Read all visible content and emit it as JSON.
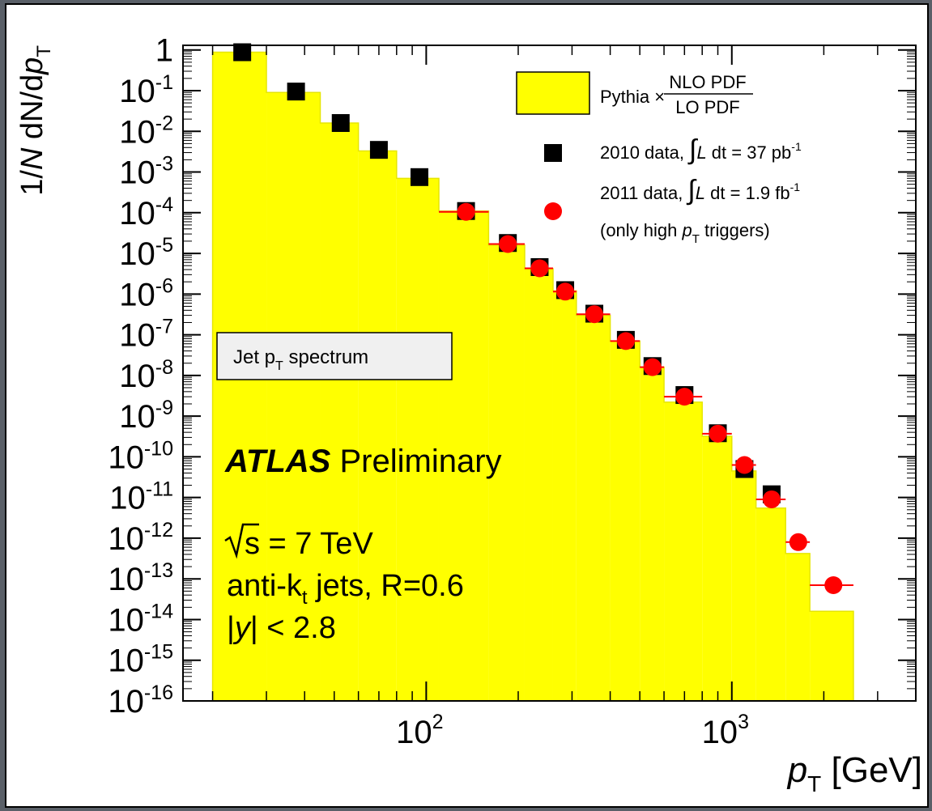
{
  "chart_data": {
    "type": "histogram-scatter",
    "xscale": "log",
    "yscale": "log",
    "xlim": [
      16,
      4000
    ],
    "ylim": [
      1e-16,
      1.3
    ],
    "y_ticks": [
      {
        "base": "1",
        "exp": ""
      },
      {
        "base": "10",
        "exp": "-1"
      },
      {
        "base": "10",
        "exp": "-2"
      },
      {
        "base": "10",
        "exp": "-3"
      },
      {
        "base": "10",
        "exp": "-4"
      },
      {
        "base": "10",
        "exp": "-5"
      },
      {
        "base": "10",
        "exp": "-6"
      },
      {
        "base": "10",
        "exp": "-7"
      },
      {
        "base": "10",
        "exp": "-8"
      },
      {
        "base": "10",
        "exp": "-9"
      },
      {
        "base": "10",
        "exp": "-10"
      },
      {
        "base": "10",
        "exp": "-11"
      },
      {
        "base": "10",
        "exp": "-12"
      },
      {
        "base": "10",
        "exp": "-13"
      },
      {
        "base": "10",
        "exp": "-14"
      },
      {
        "base": "10",
        "exp": "-15"
      },
      {
        "base": "10",
        "exp": "-16"
      }
    ],
    "x_ticks": [
      {
        "value": 100,
        "base": "10",
        "exp": "2"
      },
      {
        "value": 1000,
        "base": "10",
        "exp": "3"
      }
    ],
    "xlabel": {
      "main": "p",
      "sub": "T",
      "unit": " [GeV]"
    },
    "ylabel": {
      "pre": "1/",
      "n": "N",
      "mid": " dN/d",
      "p": "p",
      "sub": "T"
    },
    "histogram": {
      "name": "Pythia × NLO PDF / LO PDF",
      "color": "#ffff00",
      "edges": [
        20,
        30,
        45,
        60,
        80,
        110,
        160,
        210,
        260,
        310,
        400,
        500,
        600,
        800,
        1000,
        1200,
        1500,
        1800,
        2500
      ],
      "values": [
        0.88,
        0.09,
        0.016,
        0.0033,
        0.0007,
        0.00011,
        1.6e-05,
        4.2e-06,
        1.2e-06,
        3e-07,
        7e-08,
        1.6e-08,
        2.2e-09,
        3.2e-10,
        4.5e-11,
        5.5e-12,
        4.2e-13,
        1.6e-14
      ]
    },
    "series": [
      {
        "name": "2010 data, ∫L dt = 37 pb-1",
        "color": "#000000",
        "marker": "square",
        "x": [
          25,
          37.5,
          52.5,
          70,
          95,
          135,
          185,
          235,
          285,
          355,
          450,
          550,
          700,
          900,
          1100,
          1350
        ],
        "y": [
          0.88,
          0.095,
          0.016,
          0.0035,
          0.00075,
          0.00011,
          1.8e-05,
          4.6e-06,
          1.25e-06,
          3.3e-07,
          7.5e-08,
          1.7e-08,
          3.3e-09,
          3.8e-10,
          5e-11,
          1.2e-11
        ]
      },
      {
        "name": "2011 data, ∫L dt = 1.9 fb-1 (only high pT triggers)",
        "color": "#ff0000",
        "marker": "circle",
        "x": [
          135,
          185,
          235,
          285,
          355,
          450,
          550,
          700,
          900,
          1100,
          1350,
          1650,
          2150
        ],
        "y": [
          0.000105,
          1.7e-05,
          4.3e-06,
          1.15e-06,
          3.2e-07,
          7e-08,
          1.6e-08,
          3e-09,
          3.7e-10,
          6.3e-11,
          9e-12,
          8e-13,
          7e-14
        ],
        "xerr": [
          [
            110,
            160
          ],
          [
            160,
            210
          ],
          [
            210,
            260
          ],
          [
            260,
            310
          ],
          [
            310,
            400
          ],
          [
            400,
            500
          ],
          [
            500,
            600
          ],
          [
            600,
            800
          ],
          [
            800,
            1000
          ],
          [
            1000,
            1200
          ],
          [
            1200,
            1500
          ],
          [
            1500,
            1800
          ],
          [
            1800,
            2500
          ]
        ]
      }
    ],
    "legend": {
      "hist_prefix": "Pythia",
      "hist_times": "×",
      "hist_num": "NLO PDF",
      "hist_den": "LO PDF",
      "data2010_text": "2010 data,",
      "data2010_int": "L dt = 37 pb",
      "data2010_exp": "-1",
      "data2011_text": "2011 data,",
      "data2011_int": "L dt = 1.9 fb",
      "data2011_exp": "-1",
      "trigger_pre": "(only high ",
      "trigger_p": "p",
      "trigger_sub": "T",
      "trigger_post": " triggers)"
    },
    "annotations": {
      "box_label_pre": "Jet p",
      "box_label_sub": "T",
      "box_label_post": " spectrum",
      "atlas_bold": "ATLAS",
      "atlas_rest": " Preliminary",
      "energy": "s = 7 TeV",
      "jets_pre": "anti-k",
      "jets_sub": "t",
      "jets_post": " jets, R=0.6",
      "rapidity_pre": "|",
      "rapidity_y": "y",
      "rapidity_post": "| < 2.8"
    }
  }
}
